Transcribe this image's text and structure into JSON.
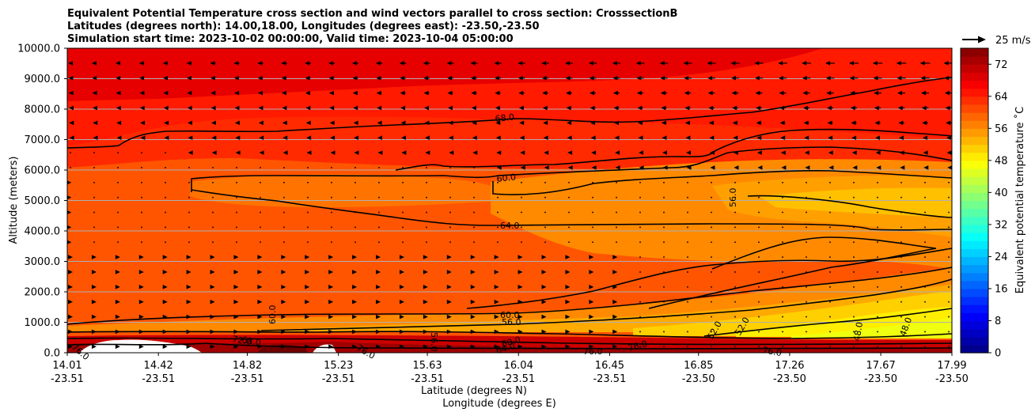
{
  "chart_data": {
    "type": "heatmap",
    "subtype": "filled-contour cross section with contour lines and wind vectors",
    "title_lines": [
      "Equivalent Potential Temperature cross section and wind vectors parallel to cross section: CrosssectionB",
      "Latitudes (degrees north): 14.00,18.00, Longitudes (degrees east): -23.50,-23.50",
      "Simulation start time: 2023-10-02 00:00:00, Valid time: 2023-10-04 05:00:00"
    ],
    "ylabel": "Altitude (meters)",
    "xlabel_lat": "Latitude (degrees N)",
    "xlabel_lon": "Longitude (degrees E)",
    "ylim": [
      0,
      10000
    ],
    "y_ticks": [
      0,
      1000,
      2000,
      3000,
      4000,
      5000,
      6000,
      7000,
      8000,
      9000,
      10000
    ],
    "y_tick_labels": [
      "0.0",
      "1000.0",
      "2000.0",
      "3000.0",
      "4000.0",
      "5000.0",
      "6000.0",
      "7000.0",
      "8000.0",
      "9000.0",
      "10000.0"
    ],
    "xlim_lat": [
      14.01,
      17.99
    ],
    "x_ticks_lat": [
      14.01,
      14.42,
      14.82,
      15.23,
      15.63,
      16.04,
      16.45,
      16.85,
      17.26,
      17.67,
      17.99
    ],
    "x_tick_labels_lat": [
      "14.01",
      "14.42",
      "14.82",
      "15.23",
      "15.63",
      "16.04",
      "16.45",
      "16.85",
      "17.26",
      "17.67",
      "17.99"
    ],
    "x_tick_labels_lon": [
      "-23.51",
      "-23.51",
      "-23.51",
      "-23.51",
      "-23.51",
      "-23.51",
      "-23.51",
      "-23.50",
      "-23.50",
      "-23.50",
      "-23.50"
    ],
    "grid_horizontal": true,
    "colorbar": {
      "label": "Equivalent potential temperature ˚C",
      "range": [
        0,
        76
      ],
      "step": 2,
      "ticks": [
        0,
        8,
        16,
        24,
        32,
        40,
        48,
        56,
        64,
        72
      ],
      "tick_labels": [
        "0",
        "8",
        "16",
        "24",
        "32",
        "40",
        "48",
        "56",
        "64",
        "72"
      ]
    },
    "quiver_key": {
      "label": "25 m/s",
      "value_ms": 25
    },
    "contour_labels": [
      "68.0",
      "60.0",
      "64.0",
      "56.0",
      "60.0",
      "56.0",
      "48.0",
      "48.0",
      "52.0",
      "52.0",
      "56.0",
      "60.0",
      "60.0",
      "64.0",
      "68.0",
      "72.0",
      "76.0",
      "76.0",
      "76.0",
      "76.0",
      "76.0"
    ]
  },
  "colors": {
    "background": "#ffffff",
    "axis": "#000000",
    "grid": "#b0b0b0",
    "contour": "#000000"
  }
}
